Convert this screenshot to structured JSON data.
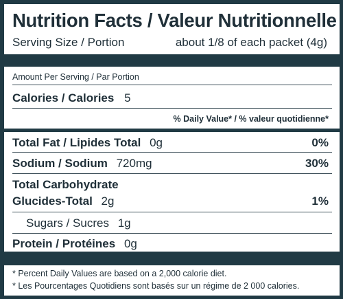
{
  "title": "Nutrition Facts / Valeur Nutritionnelle",
  "serving": {
    "label": "Serving Size / Portion",
    "value": "about 1/8 of each packet (4g)"
  },
  "amount_per_serving": "Amount Per Serving / Par Portion",
  "calories": {
    "label": "Calories / Calories",
    "value": "5"
  },
  "daily_value_header": "% Daily Value* / % valeur quotidienne*",
  "nutrients": {
    "total_fat": {
      "label": "Total Fat / Lipides Total",
      "amount": "0g",
      "dv": "0%"
    },
    "sodium": {
      "label": "Sodium / Sodium",
      "amount": "720mg",
      "dv": "30%"
    },
    "carbs": {
      "label_line1": "Total Carbohydrate",
      "label_line2": "Glucides-Total",
      "amount": "2g",
      "dv": "1%"
    },
    "sugars": {
      "label": "Sugars / Sucres",
      "amount": "1g"
    },
    "protein": {
      "label": "Protein / Protéines",
      "amount": "0g"
    }
  },
  "footnotes": [
    "* Percent Daily Values are based on a 2,000 calorie diet.",
    "* Les Pourcentages Quotidiens sont basés sur un régime de 2 000 calories."
  ],
  "colors": {
    "ink": "#1f2f38",
    "bars": "#203a44",
    "background": "#ffffff"
  }
}
